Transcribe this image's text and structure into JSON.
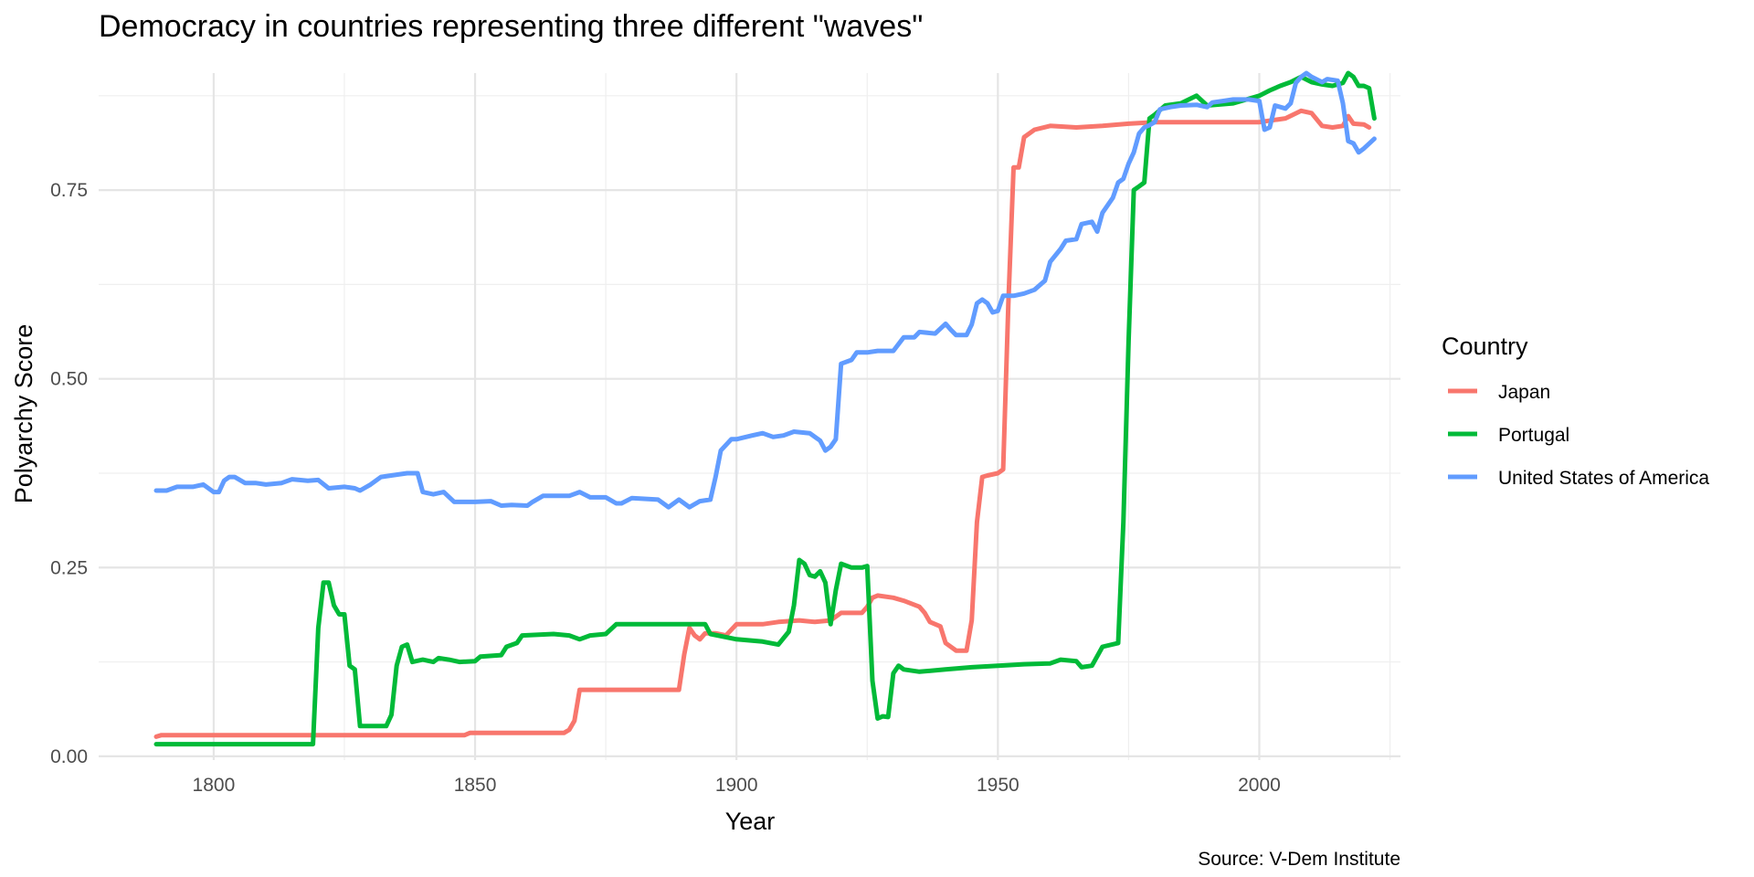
{
  "chart_data": {
    "type": "line",
    "title": "Democracy in countries representing three different \"waves\"",
    "xlabel": "Year",
    "ylabel": "Polyarchy Score",
    "caption": "Source: V-Dem Institute",
    "legend_title": "Country",
    "legend_position": "right",
    "grid": true,
    "xlim": [
      1778,
      2027
    ],
    "ylim": [
      -0.005,
      0.905
    ],
    "x_ticks": [
      1800,
      1850,
      1900,
      1950,
      2000
    ],
    "x_tick_labels": [
      "1800",
      "1850",
      "1900",
      "1950",
      "2000"
    ],
    "y_ticks": [
      0.0,
      0.25,
      0.5,
      0.75
    ],
    "y_tick_labels": [
      "0.00",
      "0.25",
      "0.50",
      "0.75"
    ],
    "series": [
      {
        "name": "Japan",
        "color": "#F8766D",
        "points": [
          [
            1789,
            0.026
          ],
          [
            1790,
            0.028
          ],
          [
            1800,
            0.028
          ],
          [
            1820,
            0.028
          ],
          [
            1840,
            0.028
          ],
          [
            1848,
            0.028
          ],
          [
            1849,
            0.031
          ],
          [
            1860,
            0.031
          ],
          [
            1867,
            0.031
          ],
          [
            1868,
            0.035
          ],
          [
            1869,
            0.047
          ],
          [
            1870,
            0.088
          ],
          [
            1880,
            0.088
          ],
          [
            1889,
            0.088
          ],
          [
            1890,
            0.135
          ],
          [
            1891,
            0.17
          ],
          [
            1892,
            0.16
          ],
          [
            1893,
            0.155
          ],
          [
            1894,
            0.163
          ],
          [
            1896,
            0.163
          ],
          [
            1898,
            0.16
          ],
          [
            1900,
            0.175
          ],
          [
            1905,
            0.175
          ],
          [
            1908,
            0.178
          ],
          [
            1912,
            0.18
          ],
          [
            1915,
            0.178
          ],
          [
            1918,
            0.18
          ],
          [
            1920,
            0.19
          ],
          [
            1924,
            0.19
          ],
          [
            1925,
            0.198
          ],
          [
            1926,
            0.21
          ],
          [
            1927,
            0.213
          ],
          [
            1930,
            0.21
          ],
          [
            1932,
            0.206
          ],
          [
            1935,
            0.198
          ],
          [
            1936,
            0.19
          ],
          [
            1937,
            0.178
          ],
          [
            1939,
            0.172
          ],
          [
            1940,
            0.15
          ],
          [
            1942,
            0.14
          ],
          [
            1944,
            0.14
          ],
          [
            1945,
            0.18
          ],
          [
            1946,
            0.31
          ],
          [
            1947,
            0.37
          ],
          [
            1948,
            0.372
          ],
          [
            1950,
            0.375
          ],
          [
            1951,
            0.38
          ],
          [
            1952,
            0.6
          ],
          [
            1953,
            0.78
          ],
          [
            1954,
            0.78
          ],
          [
            1955,
            0.82
          ],
          [
            1957,
            0.83
          ],
          [
            1960,
            0.835
          ],
          [
            1965,
            0.833
          ],
          [
            1970,
            0.835
          ],
          [
            1975,
            0.838
          ],
          [
            1980,
            0.84
          ],
          [
            1985,
            0.84
          ],
          [
            1990,
            0.84
          ],
          [
            1995,
            0.84
          ],
          [
            2000,
            0.84
          ],
          [
            2005,
            0.845
          ],
          [
            2008,
            0.855
          ],
          [
            2010,
            0.852
          ],
          [
            2012,
            0.835
          ],
          [
            2014,
            0.833
          ],
          [
            2016,
            0.835
          ],
          [
            2017,
            0.848
          ],
          [
            2018,
            0.838
          ],
          [
            2020,
            0.837
          ],
          [
            2021,
            0.833
          ]
        ]
      },
      {
        "name": "Portugal",
        "color": "#00BA38",
        "points": [
          [
            1789,
            0.016
          ],
          [
            1800,
            0.016
          ],
          [
            1819,
            0.016
          ],
          [
            1820,
            0.17
          ],
          [
            1821,
            0.23
          ],
          [
            1822,
            0.23
          ],
          [
            1823,
            0.2
          ],
          [
            1824,
            0.188
          ],
          [
            1825,
            0.188
          ],
          [
            1826,
            0.12
          ],
          [
            1827,
            0.115
          ],
          [
            1828,
            0.04
          ],
          [
            1833,
            0.04
          ],
          [
            1834,
            0.055
          ],
          [
            1835,
            0.12
          ],
          [
            1836,
            0.145
          ],
          [
            1837,
            0.148
          ],
          [
            1838,
            0.125
          ],
          [
            1840,
            0.128
          ],
          [
            1842,
            0.125
          ],
          [
            1843,
            0.13
          ],
          [
            1845,
            0.128
          ],
          [
            1847,
            0.125
          ],
          [
            1850,
            0.126
          ],
          [
            1851,
            0.132
          ],
          [
            1855,
            0.134
          ],
          [
            1856,
            0.145
          ],
          [
            1858,
            0.15
          ],
          [
            1859,
            0.16
          ],
          [
            1865,
            0.162
          ],
          [
            1868,
            0.16
          ],
          [
            1870,
            0.155
          ],
          [
            1872,
            0.16
          ],
          [
            1875,
            0.162
          ],
          [
            1877,
            0.175
          ],
          [
            1880,
            0.175
          ],
          [
            1885,
            0.175
          ],
          [
            1890,
            0.175
          ],
          [
            1894,
            0.175
          ],
          [
            1895,
            0.162
          ],
          [
            1900,
            0.155
          ],
          [
            1905,
            0.152
          ],
          [
            1908,
            0.148
          ],
          [
            1910,
            0.165
          ],
          [
            1911,
            0.2
          ],
          [
            1912,
            0.26
          ],
          [
            1913,
            0.255
          ],
          [
            1914,
            0.24
          ],
          [
            1915,
            0.238
          ],
          [
            1916,
            0.245
          ],
          [
            1917,
            0.23
          ],
          [
            1918,
            0.175
          ],
          [
            1919,
            0.22
          ],
          [
            1920,
            0.255
          ],
          [
            1922,
            0.25
          ],
          [
            1924,
            0.25
          ],
          [
            1925,
            0.252
          ],
          [
            1926,
            0.1
          ],
          [
            1927,
            0.05
          ],
          [
            1928,
            0.053
          ],
          [
            1929,
            0.052
          ],
          [
            1930,
            0.11
          ],
          [
            1931,
            0.12
          ],
          [
            1932,
            0.115
          ],
          [
            1935,
            0.112
          ],
          [
            1940,
            0.115
          ],
          [
            1945,
            0.118
          ],
          [
            1950,
            0.12
          ],
          [
            1955,
            0.122
          ],
          [
            1960,
            0.123
          ],
          [
            1962,
            0.128
          ],
          [
            1965,
            0.126
          ],
          [
            1966,
            0.118
          ],
          [
            1968,
            0.12
          ],
          [
            1970,
            0.145
          ],
          [
            1973,
            0.15
          ],
          [
            1974,
            0.31
          ],
          [
            1975,
            0.55
          ],
          [
            1976,
            0.75
          ],
          [
            1977,
            0.755
          ],
          [
            1978,
            0.76
          ],
          [
            1979,
            0.845
          ],
          [
            1980,
            0.85
          ],
          [
            1982,
            0.862
          ],
          [
            1985,
            0.865
          ],
          [
            1988,
            0.875
          ],
          [
            1990,
            0.862
          ],
          [
            1995,
            0.865
          ],
          [
            2000,
            0.875
          ],
          [
            2002,
            0.882
          ],
          [
            2004,
            0.888
          ],
          [
            2006,
            0.893
          ],
          [
            2008,
            0.9
          ],
          [
            2010,
            0.893
          ],
          [
            2012,
            0.89
          ],
          [
            2014,
            0.888
          ],
          [
            2016,
            0.892
          ],
          [
            2017,
            0.905
          ],
          [
            2018,
            0.9
          ],
          [
            2019,
            0.888
          ],
          [
            2020,
            0.888
          ],
          [
            2021,
            0.885
          ],
          [
            2022,
            0.845
          ]
        ]
      },
      {
        "name": "United States of America",
        "color": "#619CFF",
        "points": [
          [
            1789,
            0.352
          ],
          [
            1791,
            0.352
          ],
          [
            1793,
            0.357
          ],
          [
            1796,
            0.357
          ],
          [
            1798,
            0.36
          ],
          [
            1800,
            0.35
          ],
          [
            1801,
            0.35
          ],
          [
            1802,
            0.365
          ],
          [
            1803,
            0.37
          ],
          [
            1804,
            0.37
          ],
          [
            1806,
            0.362
          ],
          [
            1808,
            0.362
          ],
          [
            1810,
            0.36
          ],
          [
            1813,
            0.362
          ],
          [
            1815,
            0.367
          ],
          [
            1818,
            0.365
          ],
          [
            1820,
            0.366
          ],
          [
            1822,
            0.355
          ],
          [
            1825,
            0.357
          ],
          [
            1827,
            0.355
          ],
          [
            1828,
            0.352
          ],
          [
            1830,
            0.36
          ],
          [
            1832,
            0.37
          ],
          [
            1835,
            0.373
          ],
          [
            1837,
            0.375
          ],
          [
            1839,
            0.375
          ],
          [
            1840,
            0.35
          ],
          [
            1842,
            0.347
          ],
          [
            1844,
            0.35
          ],
          [
            1846,
            0.337
          ],
          [
            1850,
            0.337
          ],
          [
            1853,
            0.338
          ],
          [
            1855,
            0.332
          ],
          [
            1857,
            0.333
          ],
          [
            1860,
            0.332
          ],
          [
            1861,
            0.337
          ],
          [
            1863,
            0.345
          ],
          [
            1865,
            0.345
          ],
          [
            1868,
            0.345
          ],
          [
            1870,
            0.35
          ],
          [
            1872,
            0.343
          ],
          [
            1875,
            0.343
          ],
          [
            1877,
            0.335
          ],
          [
            1878,
            0.335
          ],
          [
            1880,
            0.342
          ],
          [
            1885,
            0.34
          ],
          [
            1887,
            0.33
          ],
          [
            1889,
            0.34
          ],
          [
            1891,
            0.33
          ],
          [
            1893,
            0.338
          ],
          [
            1895,
            0.34
          ],
          [
            1896,
            0.37
          ],
          [
            1897,
            0.405
          ],
          [
            1899,
            0.42
          ],
          [
            1900,
            0.42
          ],
          [
            1903,
            0.425
          ],
          [
            1905,
            0.428
          ],
          [
            1907,
            0.423
          ],
          [
            1909,
            0.425
          ],
          [
            1911,
            0.43
          ],
          [
            1914,
            0.428
          ],
          [
            1916,
            0.418
          ],
          [
            1917,
            0.405
          ],
          [
            1918,
            0.41
          ],
          [
            1919,
            0.42
          ],
          [
            1920,
            0.52
          ],
          [
            1922,
            0.525
          ],
          [
            1923,
            0.535
          ],
          [
            1925,
            0.535
          ],
          [
            1927,
            0.537
          ],
          [
            1930,
            0.537
          ],
          [
            1932,
            0.555
          ],
          [
            1934,
            0.555
          ],
          [
            1935,
            0.562
          ],
          [
            1938,
            0.56
          ],
          [
            1940,
            0.573
          ],
          [
            1941,
            0.565
          ],
          [
            1942,
            0.558
          ],
          [
            1944,
            0.558
          ],
          [
            1945,
            0.572
          ],
          [
            1946,
            0.6
          ],
          [
            1947,
            0.605
          ],
          [
            1948,
            0.6
          ],
          [
            1949,
            0.588
          ],
          [
            1950,
            0.59
          ],
          [
            1951,
            0.61
          ],
          [
            1953,
            0.61
          ],
          [
            1955,
            0.613
          ],
          [
            1957,
            0.618
          ],
          [
            1959,
            0.63
          ],
          [
            1960,
            0.655
          ],
          [
            1962,
            0.672
          ],
          [
            1963,
            0.683
          ],
          [
            1965,
            0.685
          ],
          [
            1966,
            0.705
          ],
          [
            1968,
            0.708
          ],
          [
            1969,
            0.695
          ],
          [
            1970,
            0.72
          ],
          [
            1972,
            0.74
          ],
          [
            1973,
            0.76
          ],
          [
            1974,
            0.765
          ],
          [
            1975,
            0.785
          ],
          [
            1976,
            0.8
          ],
          [
            1977,
            0.825
          ],
          [
            1978,
            0.833
          ],
          [
            1979,
            0.836
          ],
          [
            1980,
            0.84
          ],
          [
            1981,
            0.857
          ],
          [
            1983,
            0.86
          ],
          [
            1985,
            0.862
          ],
          [
            1988,
            0.863
          ],
          [
            1990,
            0.86
          ],
          [
            1991,
            0.866
          ],
          [
            1993,
            0.868
          ],
          [
            1995,
            0.87
          ],
          [
            1998,
            0.87
          ],
          [
            2000,
            0.868
          ],
          [
            2001,
            0.83
          ],
          [
            2002,
            0.833
          ],
          [
            2003,
            0.862
          ],
          [
            2005,
            0.858
          ],
          [
            2006,
            0.865
          ],
          [
            2007,
            0.892
          ],
          [
            2008,
            0.9
          ],
          [
            2009,
            0.905
          ],
          [
            2010,
            0.9
          ],
          [
            2012,
            0.893
          ],
          [
            2013,
            0.897
          ],
          [
            2015,
            0.895
          ],
          [
            2016,
            0.865
          ],
          [
            2017,
            0.815
          ],
          [
            2018,
            0.812
          ],
          [
            2019,
            0.8
          ],
          [
            2020,
            0.805
          ],
          [
            2022,
            0.818
          ]
        ]
      }
    ]
  }
}
